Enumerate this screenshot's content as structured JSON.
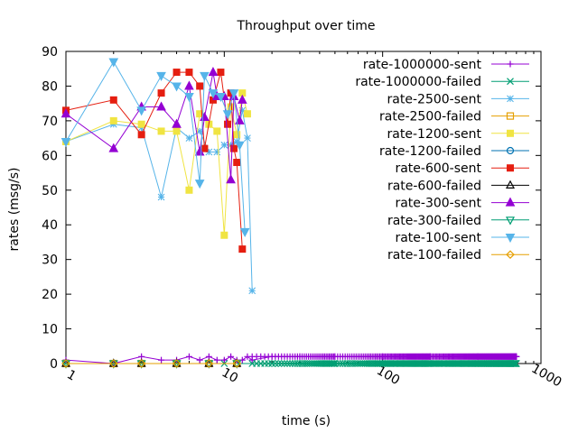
{
  "chart_data": {
    "type": "line",
    "title": "Throughput over time",
    "xlabel": "time (s)",
    "ylabel": "rates (msg/s)",
    "x_scale": "log",
    "xlim": [
      1,
      1000
    ],
    "ylim": [
      0,
      90
    ],
    "x_ticks": [
      "1",
      "10",
      "100",
      "1000"
    ],
    "y_ticks": [
      "0",
      "10",
      "20",
      "30",
      "40",
      "50",
      "60",
      "70",
      "80",
      "90"
    ],
    "legend_position": "top-right",
    "grid": false,
    "series": [
      {
        "name": "rate-1000000-sent",
        "color": "#9400d3",
        "marker": "plus",
        "x": [
          1,
          2,
          3,
          4,
          5,
          6,
          7,
          8,
          9,
          10,
          11,
          12,
          13,
          14,
          15,
          20,
          30,
          50,
          100,
          200,
          400,
          700
        ],
        "y": [
          1,
          0,
          2,
          1,
          1,
          2,
          1,
          2,
          1,
          1,
          2,
          1,
          1,
          2,
          1,
          2,
          2,
          2,
          2,
          2,
          2,
          2
        ],
        "dense_from": 15,
        "dense_y": 2
      },
      {
        "name": "rate-1000000-failed",
        "color": "#009e73",
        "marker": "x",
        "x": [
          1,
          2,
          3,
          5,
          10,
          20,
          50,
          100,
          300,
          700
        ],
        "y": [
          0,
          0,
          0,
          0,
          0,
          0,
          0,
          0,
          0,
          0
        ],
        "dense_from": 15,
        "dense_y": 0
      },
      {
        "name": "rate-2500-sent",
        "color": "#56b4e9",
        "marker": "star",
        "x": [
          1,
          2,
          3,
          4,
          5,
          6,
          7,
          8,
          9,
          10,
          11,
          12,
          13,
          14,
          15
        ],
        "y": [
          64,
          69,
          68,
          48,
          68,
          65,
          67,
          61,
          61,
          63,
          63,
          64,
          73,
          65,
          21
        ]
      },
      {
        "name": "rate-2500-failed",
        "color": "#e69f00",
        "marker": "square",
        "x": [
          1,
          2,
          3,
          5,
          8,
          12
        ],
        "y": [
          0,
          0,
          0,
          0,
          0,
          0
        ]
      },
      {
        "name": "rate-1200-sent",
        "color": "#f0e442",
        "marker": "filled-square",
        "x": [
          1,
          2,
          3,
          4,
          5,
          6,
          7,
          8,
          9,
          10,
          11,
          12,
          13,
          14
        ],
        "y": [
          64,
          70,
          69,
          67,
          67,
          50,
          72,
          69,
          67,
          37,
          74,
          66,
          78,
          72
        ]
      },
      {
        "name": "rate-1200-failed",
        "color": "#0072b2",
        "marker": "circle",
        "x": [
          1,
          2,
          3,
          5,
          8,
          12
        ],
        "y": [
          0,
          0,
          0,
          0,
          0,
          0
        ]
      },
      {
        "name": "rate-600-sent",
        "color": "#e51e10",
        "marker": "filled-square",
        "x": [
          1,
          2,
          3,
          4,
          5,
          6,
          7,
          7.5,
          8.5,
          9.5,
          10.5,
          11,
          11.5,
          12,
          13
        ],
        "y": [
          73,
          76,
          66,
          78,
          84,
          84,
          80,
          62,
          76,
          84,
          69,
          78,
          62,
          58,
          33
        ]
      },
      {
        "name": "rate-600-failed",
        "color": "#000000",
        "marker": "triangle",
        "x": [
          1,
          2,
          3,
          5,
          8,
          12
        ],
        "y": [
          0,
          0,
          0,
          0,
          0,
          0
        ]
      },
      {
        "name": "rate-300-sent",
        "color": "#9400d3",
        "marker": "filled-triangle",
        "x": [
          1,
          2,
          3,
          4,
          5,
          6,
          7,
          7.5,
          8.5,
          9,
          10,
          11,
          11.5,
          12.5,
          13
        ],
        "y": [
          72,
          62,
          74,
          74,
          69,
          80,
          61,
          71,
          84,
          77,
          77,
          53,
          77,
          70,
          76
        ]
      },
      {
        "name": "rate-300-failed",
        "color": "#009e73",
        "marker": "inverted-triangle",
        "x": [
          1,
          2,
          3,
          5,
          8,
          12
        ],
        "y": [
          0,
          0,
          0,
          0,
          0,
          0
        ]
      },
      {
        "name": "rate-100-sent",
        "color": "#56b4e9",
        "marker": "filled-inverted-triangle",
        "x": [
          1,
          2,
          3,
          4,
          5,
          6,
          7,
          7.5,
          8.5,
          9.5,
          10.5,
          11.5,
          12.5,
          13.5
        ],
        "y": [
          64,
          87,
          73,
          83,
          80,
          77,
          52,
          83,
          78,
          77,
          72,
          78,
          63,
          38
        ]
      },
      {
        "name": "rate-100-failed",
        "color": "#e69f00",
        "marker": "diamond",
        "x": [
          1,
          2,
          3,
          5,
          8,
          12
        ],
        "y": [
          0,
          0,
          0,
          0,
          0,
          0
        ]
      }
    ]
  }
}
